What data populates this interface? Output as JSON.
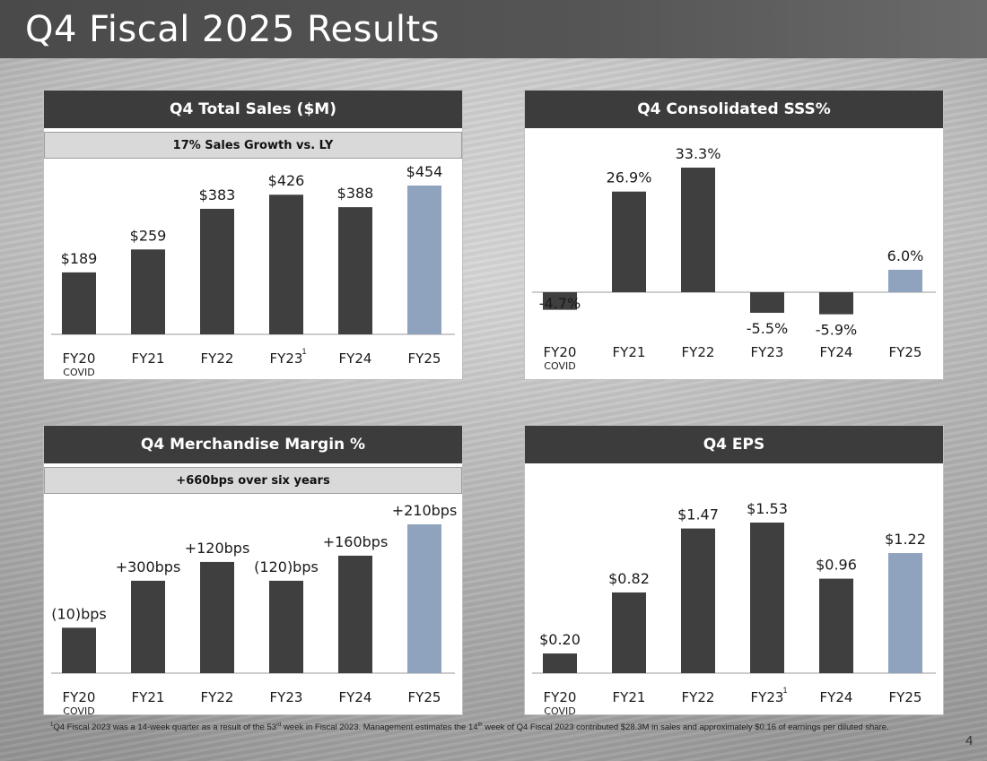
{
  "page": {
    "title": "Q4 Fiscal 2025 Results",
    "footnote": {
      "marker": "1",
      "p1": "Q4 Fiscal 2023 was a 14-week quarter as a result of the 53",
      "s1": "rd",
      "p2": " week in Fiscal 2023. Management estimates the 14",
      "s2": "th",
      "p3": " week of Q4 Fiscal 2023 contributed $28.3M in sales and approximately $0.16 of earnings per diluted share."
    },
    "page_number": "4"
  },
  "colors": {
    "bar": "#3f3f3f",
    "highlight": "#8fa3bf",
    "header": "#3c3c3c",
    "subbar": "#d9d9d9"
  },
  "chart_data": [
    {
      "id": "sales",
      "type": "bar",
      "title": "Q4 Total Sales ($M)",
      "subtitle": "17% Sales Growth vs. LY",
      "categories": [
        "FY20",
        "FY21",
        "FY22",
        "FY23",
        "FY24",
        "FY25"
      ],
      "cat_sublabels": [
        "COVID",
        "",
        "",
        "",
        "",
        ""
      ],
      "cat_superscripts": [
        "",
        "",
        "",
        "1",
        "",
        ""
      ],
      "values": [
        189,
        259,
        383,
        426,
        388,
        454
      ],
      "labels": [
        "$189",
        "$259",
        "$383",
        "$426",
        "$388",
        "$454"
      ],
      "highlight_index": 5,
      "ylim": [
        0,
        454
      ]
    },
    {
      "id": "sss",
      "type": "bar",
      "title": "Q4 Consolidated SSS%",
      "subtitle": "",
      "categories": [
        "FY20",
        "FY21",
        "FY22",
        "FY23",
        "FY24",
        "FY25"
      ],
      "cat_sublabels": [
        "COVID",
        "",
        "",
        "",
        "",
        ""
      ],
      "cat_superscripts": [
        "",
        "",
        "",
        "",
        "",
        ""
      ],
      "values": [
        -4.7,
        26.9,
        33.3,
        -5.5,
        -5.9,
        6.0
      ],
      "labels": [
        "-4.7%",
        "26.9%",
        "33.3%",
        "-5.5%",
        "-5.9%",
        "6.0%"
      ],
      "highlight_index": 5,
      "ylim": [
        -5.9,
        33.3
      ]
    },
    {
      "id": "margin",
      "type": "bar",
      "title": "Q4 Merchandise Margin %",
      "subtitle": "+660bps over six years",
      "categories": [
        "FY20",
        "FY21",
        "FY22",
        "FY23",
        "FY24",
        "FY25"
      ],
      "cat_sublabels": [
        "COVID",
        "",
        "",
        "",
        "",
        ""
      ],
      "cat_superscripts": [
        "",
        "",
        "",
        "",
        "",
        ""
      ],
      "values": [
        34.4,
        37.4,
        38.6,
        37.4,
        39.0,
        41.0
      ],
      "labels": [
        "(10)bps",
        "+300bps",
        "+120bps",
        "(120)bps",
        "+160bps",
        "+210bps"
      ],
      "highlight_index": 5,
      "ylim": [
        31.5,
        41.0
      ]
    },
    {
      "id": "eps",
      "type": "bar",
      "title": "Q4 EPS",
      "subtitle": "",
      "categories": [
        "FY20",
        "FY21",
        "FY22",
        "FY23",
        "FY24",
        "FY25"
      ],
      "cat_sublabels": [
        "COVID",
        "",
        "",
        "",
        "",
        ""
      ],
      "cat_superscripts": [
        "",
        "",
        "",
        "1",
        "",
        ""
      ],
      "values": [
        0.2,
        0.82,
        1.47,
        1.53,
        0.96,
        1.22
      ],
      "labels": [
        "$0.20",
        "$0.82",
        "$1.47",
        "$1.53",
        "$0.96",
        "$1.22"
      ],
      "highlight_index": 5,
      "ylim": [
        0,
        1.53
      ]
    }
  ]
}
